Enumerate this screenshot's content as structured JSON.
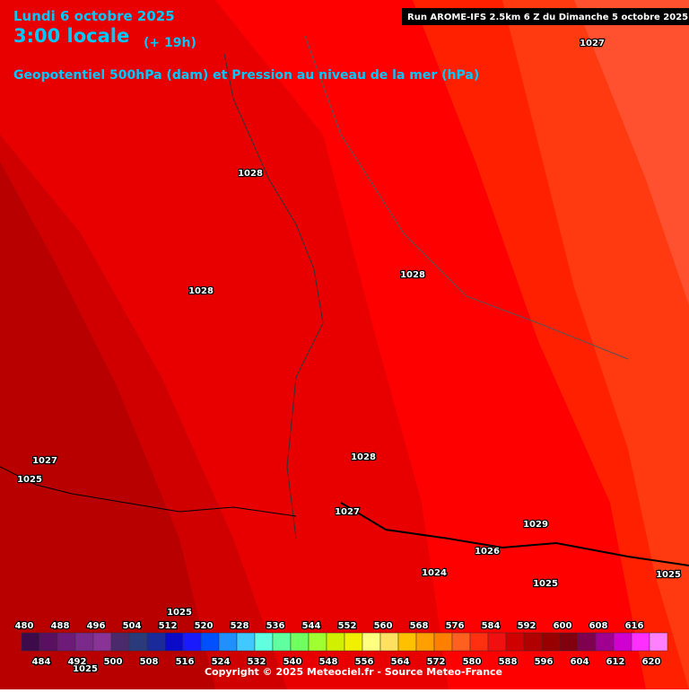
{
  "header": {
    "date": "Lundi 6 octobre 2025",
    "time": "3:00 locale",
    "lead": "(+ 19h)",
    "subtitle": "Geopotentiel 500hPa (dam) et Pression au niveau de la mer (hPa)",
    "run": "Run AROME-IFS 2.5km 6 Z du Dimanche 5 octobre 2025"
  },
  "isobar_labels": [
    "1027",
    "1028",
    "1028",
    "1028",
    "1028",
    "1027",
    "1025",
    "1027",
    "1029",
    "1026",
    "1024",
    "1025",
    "1025",
    "1025",
    "1025"
  ],
  "scale": {
    "top_labels": [
      480,
      488,
      496,
      504,
      512,
      520,
      528,
      536,
      544,
      552,
      560,
      568,
      576,
      584,
      592,
      600,
      608,
      616
    ],
    "bottom_labels": [
      484,
      492,
      500,
      508,
      516,
      524,
      532,
      540,
      548,
      556,
      564,
      572,
      580,
      588,
      596,
      604,
      612,
      620
    ],
    "colors": [
      "#3d0a4a",
      "#5a1060",
      "#6e1a78",
      "#7a2a8a",
      "#8a3396",
      "#4a2a6a",
      "#2a3a7a",
      "#1a2a9a",
      "#0a0ac8",
      "#1a1aff",
      "#0050ff",
      "#2090ff",
      "#40c8ff",
      "#60ffe0",
      "#60ffa0",
      "#70ff60",
      "#a0ff30",
      "#d0f000",
      "#f0f000",
      "#ffff80",
      "#ffe060",
      "#ffc000",
      "#ffa000",
      "#ff8000",
      "#ff6020",
      "#ff3010",
      "#f01010",
      "#d00000",
      "#b00000",
      "#980000",
      "#800010",
      "#800050",
      "#a00090",
      "#d000d0",
      "#ff30ff",
      "#ff80ff"
    ]
  },
  "footer": {
    "copyright": "Copyright © 2025 Meteociel.fr - Source Meteo-France"
  }
}
